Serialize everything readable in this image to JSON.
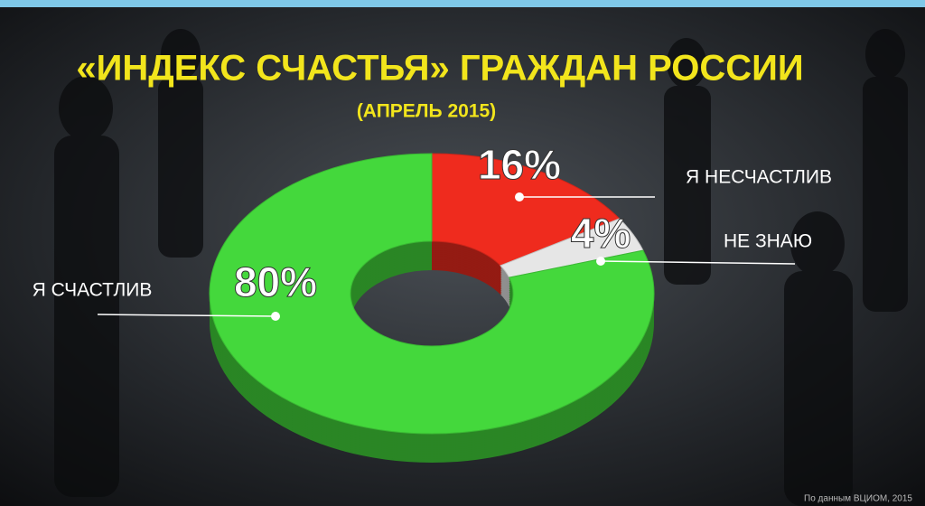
{
  "chart_data": {
    "type": "donut",
    "title": "«ИНДЕКС СЧАСТЬЯ» ГРАЖДАН РОССИИ",
    "subtitle": "(АПРЕЛЬ 2015)",
    "categories": [
      "Я НЕСЧАСТЛИВ",
      "НЕ ЗНАЮ",
      "Я СЧАСТЛИВ"
    ],
    "values": [
      16,
      4,
      80
    ],
    "value_labels": [
      "16%",
      "4%",
      "80%"
    ],
    "colors": [
      "#ef2b1e",
      "#e6e6e6",
      "#44d83c"
    ],
    "source": "По данным ВЦИОМ, 2015"
  }
}
